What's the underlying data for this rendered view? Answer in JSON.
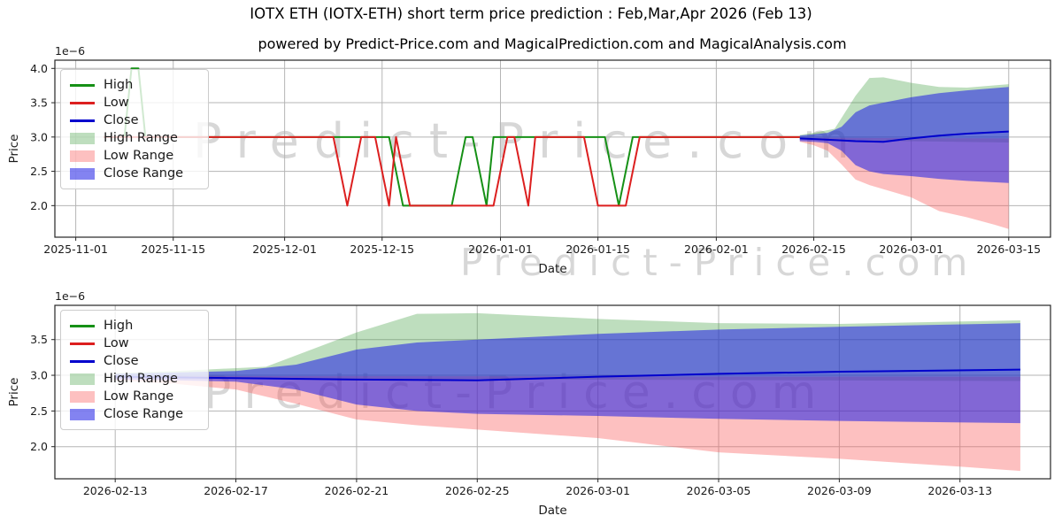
{
  "title": "IOTX ETH (IOTX-ETH) short term price prediction : Feb,Mar,Apr 2026 (Feb 13)",
  "subtitle": "powered by Predict-Price.com and MagicalPrediction.com and MagicalAnalysis.com",
  "watermark_text": "Predict-Price.com",
  "colors": {
    "high": "#169016",
    "low": "#dc1f1f",
    "close": "#0000cd",
    "high_range": "rgba(70,160,70,0.35)",
    "low_range": "rgba(250,90,90,0.38)",
    "close_range": "rgba(30,30,230,0.55)",
    "grid": "#b5b5b5",
    "spine": "#262626",
    "text": "#1a1a1a",
    "watermark": "rgba(150,150,150,0.38)"
  },
  "legend": {
    "items": [
      {
        "label": "High",
        "type": "line",
        "color": "high"
      },
      {
        "label": "Low",
        "type": "line",
        "color": "low"
      },
      {
        "label": "Close",
        "type": "line",
        "color": "close"
      },
      {
        "label": "High Range",
        "type": "patch",
        "color": "high_range"
      },
      {
        "label": "Low Range",
        "type": "patch",
        "color": "low_range"
      },
      {
        "label": "Close Range",
        "type": "patch",
        "color": "close_range"
      }
    ]
  },
  "chart_data": {
    "type": "line",
    "unit_multiplier": "1e−6",
    "series": {
      "historical_high": [
        [
          "2025-11-05",
          3.0
        ],
        [
          "2025-11-08",
          3.0
        ],
        [
          "2025-11-09",
          4.0
        ],
        [
          "2025-11-10",
          4.0
        ],
        [
          "2025-11-11",
          3.0
        ],
        [
          "2025-12-16",
          3.0
        ],
        [
          "2025-12-18",
          2.0
        ],
        [
          "2025-12-25",
          2.0
        ],
        [
          "2025-12-27",
          3.0
        ],
        [
          "2025-12-28",
          3.0
        ],
        [
          "2025-12-30",
          2.0
        ],
        [
          "2025-12-31",
          3.0
        ],
        [
          "2026-01-16",
          3.0
        ],
        [
          "2026-01-18",
          2.0
        ],
        [
          "2026-01-20",
          3.0
        ],
        [
          "2026-02-13",
          3.0
        ]
      ],
      "historical_low": [
        [
          "2025-11-05",
          3.0
        ],
        [
          "2025-12-08",
          3.0
        ],
        [
          "2025-12-10",
          2.0
        ],
        [
          "2025-12-12",
          3.0
        ],
        [
          "2025-12-14",
          3.0
        ],
        [
          "2025-12-16",
          2.0
        ],
        [
          "2025-12-17",
          3.0
        ],
        [
          "2025-12-19",
          2.0
        ],
        [
          "2025-12-31",
          2.0
        ],
        [
          "2026-01-02",
          3.0
        ],
        [
          "2026-01-03",
          3.0
        ],
        [
          "2026-01-05",
          2.0
        ],
        [
          "2026-01-06",
          3.0
        ],
        [
          "2026-01-13",
          3.0
        ],
        [
          "2026-01-15",
          2.0
        ],
        [
          "2026-01-19",
          2.0
        ],
        [
          "2026-01-21",
          3.0
        ],
        [
          "2026-02-13",
          3.0
        ]
      ],
      "close_forecast": [
        [
          "2026-02-13",
          2.98
        ],
        [
          "2026-02-17",
          2.96
        ],
        [
          "2026-02-21",
          2.94
        ],
        [
          "2026-02-25",
          2.93
        ],
        [
          "2026-03-01",
          2.98
        ],
        [
          "2026-03-05",
          3.02
        ],
        [
          "2026-03-09",
          3.05
        ],
        [
          "2026-03-15",
          3.08
        ]
      ],
      "high_range_top": [
        [
          "2026-02-13",
          3.03
        ],
        [
          "2026-02-15",
          3.06
        ],
        [
          "2026-02-18",
          3.12
        ],
        [
          "2026-02-21",
          3.6
        ],
        [
          "2026-02-23",
          3.86
        ],
        [
          "2026-02-25",
          3.87
        ],
        [
          "2026-03-01",
          3.79
        ],
        [
          "2026-03-05",
          3.73
        ],
        [
          "2026-03-09",
          3.72
        ],
        [
          "2026-03-15",
          3.77
        ]
      ],
      "high_range_bottom": [
        [
          "2026-02-13",
          2.96
        ],
        [
          "2026-03-15",
          2.92
        ]
      ],
      "low_range_top": [
        [
          "2026-02-13",
          2.99
        ],
        [
          "2026-03-15",
          2.98
        ]
      ],
      "low_range_bottom": [
        [
          "2026-02-13",
          2.93
        ],
        [
          "2026-02-15",
          2.88
        ],
        [
          "2026-02-17",
          2.8
        ],
        [
          "2026-02-19",
          2.6
        ],
        [
          "2026-02-21",
          2.38
        ],
        [
          "2026-02-23",
          2.3
        ],
        [
          "2026-02-25",
          2.24
        ],
        [
          "2026-03-01",
          2.12
        ],
        [
          "2026-03-05",
          1.92
        ],
        [
          "2026-03-09",
          1.83
        ],
        [
          "2026-03-13",
          1.72
        ],
        [
          "2026-03-15",
          1.66
        ]
      ],
      "close_range_top": [
        [
          "2026-02-13",
          3.02
        ],
        [
          "2026-02-15",
          3.04
        ],
        [
          "2026-02-17",
          3.06
        ],
        [
          "2026-02-19",
          3.15
        ],
        [
          "2026-02-21",
          3.36
        ],
        [
          "2026-02-23",
          3.46
        ],
        [
          "2026-02-25",
          3.5
        ],
        [
          "2026-03-01",
          3.58
        ],
        [
          "2026-03-05",
          3.64
        ],
        [
          "2026-03-09",
          3.68
        ],
        [
          "2026-03-15",
          3.73
        ]
      ],
      "close_range_bottom": [
        [
          "2026-02-13",
          2.94
        ],
        [
          "2026-02-15",
          2.93
        ],
        [
          "2026-02-17",
          2.91
        ],
        [
          "2026-02-19",
          2.8
        ],
        [
          "2026-02-21",
          2.59
        ],
        [
          "2026-02-23",
          2.5
        ],
        [
          "2026-02-25",
          2.46
        ],
        [
          "2026-03-01",
          2.43
        ],
        [
          "2026-03-05",
          2.39
        ],
        [
          "2026-03-09",
          2.36
        ],
        [
          "2026-03-15",
          2.33
        ]
      ]
    },
    "charts": [
      {
        "name": "history-and-forecast",
        "xlabel": "Date",
        "ylabel": "Price",
        "offset": "1e−6",
        "grid": true,
        "xlim": [
          "2025-10-29",
          "2026-03-21"
        ],
        "ylim": [
          1.54,
          4.12
        ],
        "xticks": [
          "2025-11-01",
          "2025-11-15",
          "2025-12-01",
          "2025-12-15",
          "2026-01-01",
          "2026-01-15",
          "2026-02-01",
          "2026-02-15",
          "2026-03-01",
          "2026-03-15"
        ],
        "yticks": [
          2.0,
          2.5,
          3.0,
          3.5,
          4.0
        ],
        "bands": [
          {
            "name": "high-range",
            "color": "high_range",
            "top": "high_range_top",
            "bottom": "high_range_bottom"
          },
          {
            "name": "low-range",
            "color": "low_range",
            "top": "low_range_top",
            "bottom": "low_range_bottom"
          },
          {
            "name": "close-range",
            "color": "close_range",
            "top": "close_range_top",
            "bottom": "close_range_bottom"
          }
        ],
        "lines": [
          {
            "name": "high",
            "color": "high",
            "series": "historical_high"
          },
          {
            "name": "low",
            "color": "low",
            "series": "historical_low"
          },
          {
            "name": "close",
            "color": "close",
            "series": "close_forecast"
          }
        ]
      },
      {
        "name": "forecast-detail",
        "xlabel": "Date",
        "ylabel": "Price",
        "offset": "1e−6",
        "grid": true,
        "xlim": [
          "2026-02-11",
          "2026-03-16"
        ],
        "ylim": [
          1.55,
          3.98
        ],
        "xticks": [
          "2026-02-13",
          "2026-02-17",
          "2026-02-21",
          "2026-02-25",
          "2026-03-01",
          "2026-03-05",
          "2026-03-09",
          "2026-03-13"
        ],
        "yticks": [
          2.0,
          2.5,
          3.0,
          3.5
        ],
        "bands": [
          {
            "name": "high-range",
            "color": "high_range",
            "top": "high_range_top",
            "bottom": "high_range_bottom"
          },
          {
            "name": "low-range",
            "color": "low_range",
            "top": "low_range_top",
            "bottom": "low_range_bottom"
          },
          {
            "name": "close-range",
            "color": "close_range",
            "top": "close_range_top",
            "bottom": "close_range_bottom"
          }
        ],
        "lines": [
          {
            "name": "close",
            "color": "close",
            "series": "close_forecast"
          }
        ]
      }
    ]
  }
}
